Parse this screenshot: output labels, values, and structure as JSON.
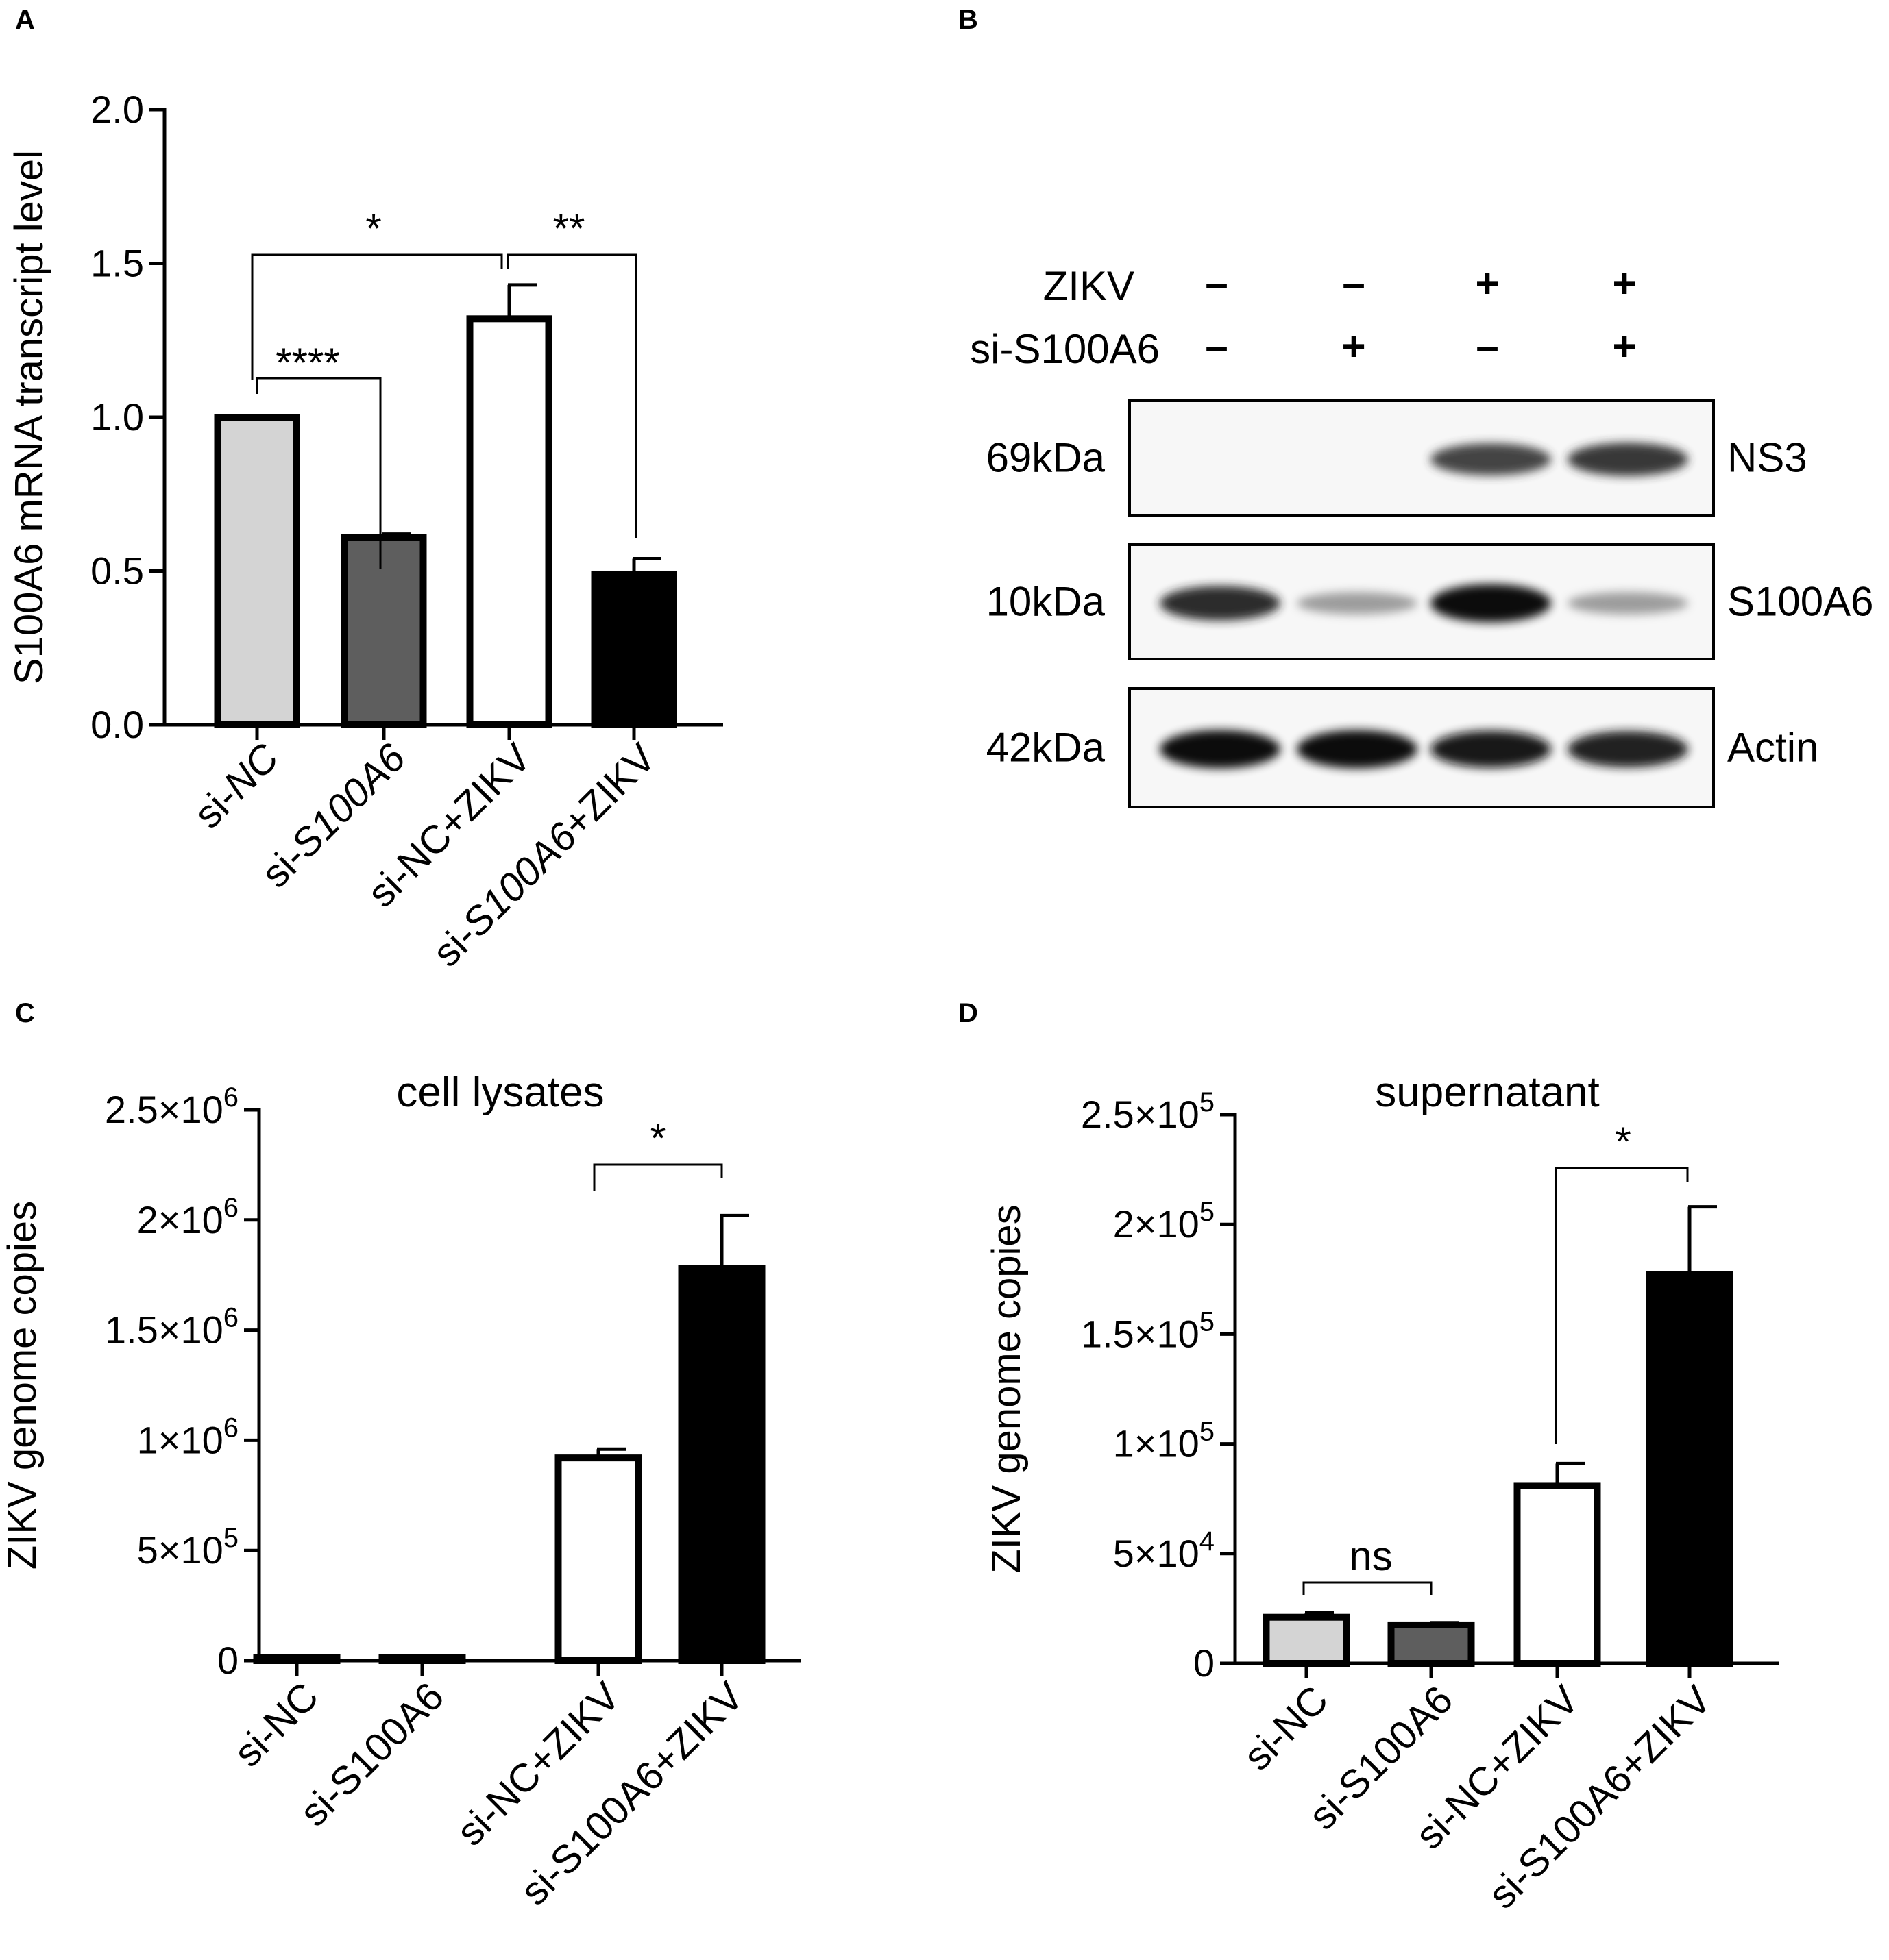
{
  "panels": {
    "A": "A",
    "B": "B",
    "C": "C",
    "D": "D"
  },
  "chart_data": [
    {
      "panel": "A",
      "type": "bar",
      "title": "",
      "ylabel": "S100A6 mRNA transcript level",
      "ylim": [
        0,
        2.0
      ],
      "yticks": [
        "0.0",
        "0.5",
        "1.0",
        "1.5",
        "2.0"
      ],
      "categories": [
        "si-NC",
        "si-S100A6",
        "si-NC+ZIKV",
        "si-S100A6+ZIKV"
      ],
      "category_italic": [
        {
          "pre": "si-",
          "it": "NC",
          "post": ""
        },
        {
          "pre": "si-",
          "it": "S100A6",
          "post": ""
        },
        {
          "pre": "si-NC+ZIKV",
          "it": "",
          "post": ""
        },
        {
          "pre": "si-",
          "it": "S100A6",
          "post": "+ZIKV"
        }
      ],
      "values": [
        1.0,
        0.61,
        1.32,
        0.49
      ],
      "errors": [
        0.0,
        0.01,
        0.11,
        0.05
      ],
      "bar_colors": [
        "#d4d4d4",
        "#5e5e5e",
        "#ffffff",
        "#000000"
      ],
      "significance": [
        {
          "from": 0,
          "to": 1,
          "label": "****"
        },
        {
          "from": 0,
          "to": 2,
          "label": "*"
        },
        {
          "from": 2,
          "to": 3,
          "label": "**"
        }
      ]
    },
    {
      "panel": "C",
      "type": "bar",
      "title": "cell lysates",
      "ylabel": "ZIKV genome copies",
      "ylim": [
        0,
        2500000
      ],
      "yticks": [
        {
          "mant": "0",
          "exp": ""
        },
        {
          "mant": "5×10",
          "exp": "5"
        },
        {
          "mant": "1×10",
          "exp": "6"
        },
        {
          "mant": "1.5×10",
          "exp": "6"
        },
        {
          "mant": "2×10",
          "exp": "6"
        },
        {
          "mant": "2.5×10",
          "exp": "6"
        }
      ],
      "categories": [
        "si-NC",
        "si-S100A6",
        "si-NC+ZIKV",
        "si-S100A6+ZIKV"
      ],
      "values": [
        15000,
        8000,
        920000,
        1780000
      ],
      "errors": [
        6000,
        3000,
        40000,
        240000
      ],
      "bar_colors": [
        "#d4d4d4",
        "#5e5e5e",
        "#ffffff",
        "#000000"
      ],
      "significance": [
        {
          "from": 2,
          "to": 3,
          "label": "*"
        }
      ]
    },
    {
      "panel": "D",
      "type": "bar",
      "title": "supernatant",
      "ylabel": "ZIKV genome copies",
      "ylim": [
        0,
        250000
      ],
      "yticks": [
        {
          "mant": "0",
          "exp": ""
        },
        {
          "mant": "5×10",
          "exp": "4"
        },
        {
          "mant": "1×10",
          "exp": "5"
        },
        {
          "mant": "1.5×10",
          "exp": "5"
        },
        {
          "mant": "2×10",
          "exp": "5"
        },
        {
          "mant": "2.5×10",
          "exp": "5"
        }
      ],
      "categories": [
        "si-NC",
        "si-S100A6",
        "si-NC+ZIKV",
        "si-S100A6+ZIKV"
      ],
      "values": [
        21000,
        17500,
        81000,
        177000
      ],
      "errors": [
        2000,
        1000,
        10000,
        31000
      ],
      "bar_colors": [
        "#d4d4d4",
        "#5e5e5e",
        "#ffffff",
        "#000000"
      ],
      "significance": [
        {
          "from": 0,
          "to": 1,
          "label": "ns"
        },
        {
          "from": 2,
          "to": 3,
          "label": "*"
        }
      ]
    }
  ],
  "western_blot": {
    "conditions": [
      {
        "label": "ZIKV",
        "lanes": [
          "-",
          "-",
          "+",
          "+"
        ]
      },
      {
        "label": "si-S100A6",
        "lanes": [
          "-",
          "+",
          "-",
          "+"
        ]
      }
    ],
    "rows": [
      {
        "kda": "69kDa",
        "protein": "NS3",
        "intensity": [
          0.0,
          0.0,
          0.75,
          0.8
        ]
      },
      {
        "kda": "10kDa",
        "protein": "S100A6",
        "intensity": [
          0.85,
          0.35,
          1.0,
          0.35
        ]
      },
      {
        "kda": "42kDa",
        "protein": "Actin",
        "intensity": [
          1.0,
          1.0,
          0.95,
          0.92
        ]
      }
    ]
  }
}
